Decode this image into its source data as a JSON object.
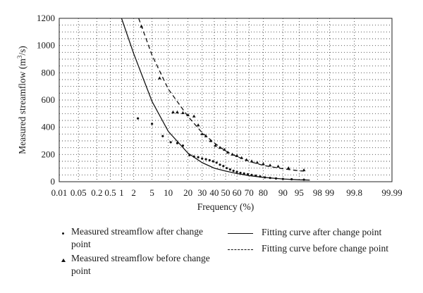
{
  "chart_data": {
    "type": "scatter",
    "xscale": "probability",
    "xlabel": "Frequency (%)",
    "ylabel": "Measured streamflow (m3/s)",
    "ylim": [
      0,
      1200
    ],
    "yticks": [
      0,
      200,
      400,
      600,
      800,
      1000,
      1200
    ],
    "xticks": [
      "0.01",
      "0.05",
      "0.2",
      "0.5",
      "1",
      "2",
      "5",
      "10",
      "20",
      "30",
      "40",
      "50",
      "60",
      "70",
      "80",
      "90",
      "95",
      "98",
      "99",
      "99.8",
      "99.99"
    ],
    "grid": true,
    "series": [
      {
        "name": "Measured streamflow after change point",
        "marker": "dot",
        "points": [
          [
            2.5,
            465
          ],
          [
            5,
            425
          ],
          [
            8,
            335
          ],
          [
            11,
            290
          ],
          [
            14,
            283
          ],
          [
            17,
            265
          ],
          [
            21,
            195
          ],
          [
            24,
            185
          ],
          [
            27,
            180
          ],
          [
            30,
            170
          ],
          [
            33,
            165
          ],
          [
            36,
            158
          ],
          [
            39,
            150
          ],
          [
            42,
            140
          ],
          [
            45,
            125
          ],
          [
            48,
            115
          ],
          [
            51,
            100
          ],
          [
            54,
            90
          ],
          [
            57,
            80
          ],
          [
            60,
            72
          ],
          [
            63,
            65
          ],
          [
            66,
            60
          ],
          [
            69,
            55
          ],
          [
            72,
            50
          ],
          [
            75,
            45
          ],
          [
            78,
            38
          ],
          [
            81,
            32
          ],
          [
            84,
            28
          ],
          [
            87,
            24
          ],
          [
            90,
            20
          ],
          [
            93,
            18
          ],
          [
            96,
            15
          ]
        ]
      },
      {
        "name": "Measured streamflow before change point",
        "marker": "triangle",
        "points": [
          [
            3,
            1140
          ],
          [
            7,
            760
          ],
          [
            12,
            510
          ],
          [
            14,
            510
          ],
          [
            17,
            505
          ],
          [
            20,
            490
          ],
          [
            24,
            480
          ],
          [
            27,
            415
          ],
          [
            30,
            350
          ],
          [
            33,
            335
          ],
          [
            37,
            300
          ],
          [
            41,
            265
          ],
          [
            45,
            250
          ],
          [
            49,
            235
          ],
          [
            52,
            215
          ],
          [
            56,
            200
          ],
          [
            60,
            190
          ],
          [
            64,
            175
          ],
          [
            68,
            160
          ],
          [
            72,
            150
          ],
          [
            76,
            140
          ],
          [
            80,
            130
          ],
          [
            84,
            120
          ],
          [
            88,
            112
          ],
          [
            92,
            100
          ],
          [
            96,
            85
          ]
        ]
      },
      {
        "name": "Fitting curve after change point",
        "style": "solid",
        "points": [
          [
            1,
            1200
          ],
          [
            2,
            940
          ],
          [
            5,
            590
          ],
          [
            10,
            370
          ],
          [
            20,
            210
          ],
          [
            30,
            140
          ],
          [
            40,
            100
          ],
          [
            50,
            78
          ],
          [
            60,
            60
          ],
          [
            70,
            45
          ],
          [
            80,
            32
          ],
          [
            90,
            20
          ],
          [
            95,
            14
          ],
          [
            97,
            12
          ]
        ]
      },
      {
        "name": "Fitting curve before change point",
        "style": "dashed",
        "points": [
          [
            2.6,
            1200
          ],
          [
            5,
            930
          ],
          [
            10,
            680
          ],
          [
            20,
            480
          ],
          [
            30,
            360
          ],
          [
            40,
            285
          ],
          [
            50,
            225
          ],
          [
            60,
            185
          ],
          [
            70,
            150
          ],
          [
            80,
            120
          ],
          [
            90,
            95
          ],
          [
            95,
            80
          ],
          [
            96,
            78
          ]
        ]
      }
    ]
  }
}
